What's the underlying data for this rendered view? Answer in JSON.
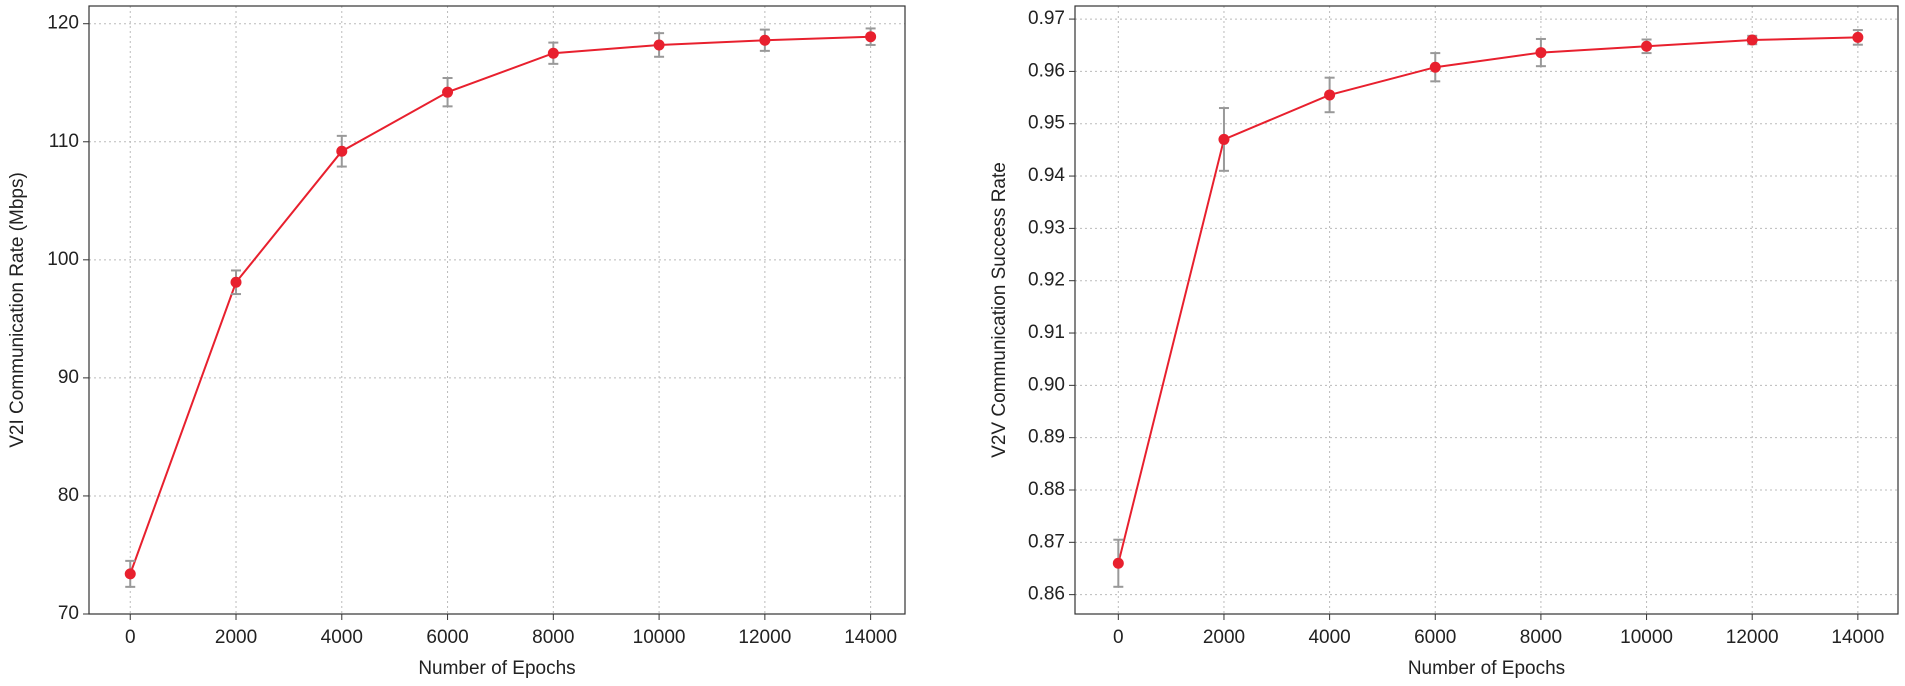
{
  "chart_data": [
    {
      "type": "line",
      "xlabel": "Number of Epochs",
      "ylabel": "V2I Communication Rate (Mbps)",
      "x": [
        0,
        2000,
        4000,
        6000,
        8000,
        10000,
        12000,
        14000
      ],
      "values": [
        73.4,
        98.1,
        109.2,
        114.2,
        117.5,
        118.2,
        118.6,
        118.9
      ],
      "errors": [
        1.1,
        1.0,
        1.3,
        1.2,
        0.9,
        1.0,
        0.9,
        0.7
      ],
      "color": "#e8202e",
      "error_color": "#999999",
      "xlim": [
        -780,
        14650
      ],
      "xticks": [
        0,
        2000,
        4000,
        6000,
        8000,
        10000,
        12000,
        14000
      ],
      "ylim": [
        70,
        121.5
      ],
      "yticks": [
        70,
        80,
        90,
        100,
        110,
        120
      ],
      "grid": true
    },
    {
      "type": "line",
      "xlabel": "Number of Epochs",
      "ylabel": "V2V Communication Success Rate",
      "x": [
        0,
        2000,
        4000,
        6000,
        8000,
        10000,
        12000,
        14000
      ],
      "values": [
        0.866,
        0.947,
        0.9555,
        0.9608,
        0.9636,
        0.9648,
        0.966,
        0.9665
      ],
      "errors": [
        0.0045,
        0.006,
        0.0033,
        0.0027,
        0.0026,
        0.0013,
        0.0008,
        0.0014
      ],
      "color": "#e8202e",
      "error_color": "#999999",
      "xlim": [
        -820,
        14760
      ],
      "xticks": [
        0,
        2000,
        4000,
        6000,
        8000,
        10000,
        12000,
        14000
      ],
      "ylim": [
        0.8563,
        0.9725
      ],
      "yticks": [
        0.86,
        0.87,
        0.88,
        0.89,
        {
          "value": 0.9,
          "label": "0.90"
        },
        0.91,
        0.92,
        0.93,
        0.94,
        0.95,
        0.96,
        0.97
      ],
      "grid": true
    }
  ]
}
